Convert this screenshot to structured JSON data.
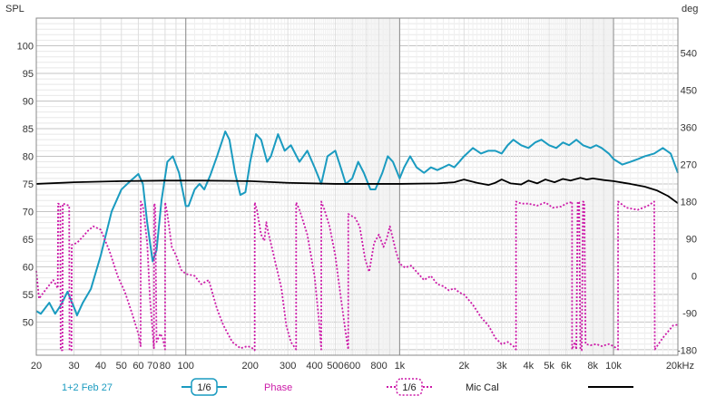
{
  "chart_data": {
    "type": "line",
    "left_axis": {
      "title": "SPL",
      "ylim": [
        44,
        105
      ],
      "ticks": [
        50,
        55,
        60,
        65,
        70,
        75,
        80,
        85,
        90,
        95,
        100
      ],
      "tick_labels": [
        "50",
        "55",
        "60",
        "65",
        "70",
        "75",
        "80",
        "85",
        "90",
        "95",
        "100"
      ]
    },
    "right_axis": {
      "title": "deg",
      "ylim": [
        -192,
        624
      ],
      "ticks": [
        -180,
        -90,
        0,
        90,
        180,
        270,
        360,
        450,
        540
      ],
      "tick_labels": [
        "-180",
        "-90",
        "0",
        "90",
        "180",
        "270",
        "360",
        "450",
        "540"
      ]
    },
    "x_axis": {
      "scale": "log",
      "xlim": [
        20,
        20000
      ],
      "unit": "Hz",
      "ticks": [
        20,
        30,
        40,
        50,
        60,
        70,
        80,
        100,
        200,
        300,
        400,
        500,
        600,
        800,
        1000,
        2000,
        3000,
        4000,
        5000,
        6000,
        8000,
        10000,
        20000
      ],
      "tick_labels": [
        "20",
        "30",
        "40",
        "50",
        "60",
        "70",
        "80",
        "100",
        "200",
        "300",
        "400",
        "500",
        "600",
        "800",
        "1k",
        "2k",
        "3k",
        "4k",
        "5k",
        "6k",
        "8k",
        "10k",
        "20kHz"
      ],
      "decade_lines": [
        100,
        1000,
        10000
      ]
    },
    "legend": [
      {
        "label": "1+2 Feb 27",
        "smoothing": "1/6",
        "color": "#1a9bc0",
        "style": "solid"
      },
      {
        "label": "Phase",
        "smoothing": "1/6",
        "color": "#cc1aa8",
        "style": "dotted"
      },
      {
        "label": "Mic Cal",
        "smoothing": "",
        "color": "#000000",
        "style": "solid"
      }
    ],
    "series": [
      {
        "name": "1+2 Feb 27",
        "axis": "left",
        "color": "#1a9bc0",
        "points": [
          [
            20,
            52
          ],
          [
            21,
            51.5
          ],
          [
            23,
            53.5
          ],
          [
            24.5,
            51.5
          ],
          [
            26,
            53
          ],
          [
            28,
            55.5
          ],
          [
            30.5,
            52
          ],
          [
            31,
            51.2
          ],
          [
            33,
            53.5
          ],
          [
            36,
            56
          ],
          [
            40,
            62
          ],
          [
            45,
            70
          ],
          [
            50,
            74
          ],
          [
            55,
            75.5
          ],
          [
            60,
            76.8
          ],
          [
            63,
            75
          ],
          [
            66,
            68
          ],
          [
            70,
            61
          ],
          [
            73,
            63
          ],
          [
            77,
            72
          ],
          [
            82,
            79
          ],
          [
            87,
            80
          ],
          [
            93,
            77
          ],
          [
            100,
            71
          ],
          [
            103,
            71
          ],
          [
            110,
            74
          ],
          [
            116,
            75
          ],
          [
            122,
            74
          ],
          [
            130,
            76.5
          ],
          [
            140,
            80
          ],
          [
            153,
            84.5
          ],
          [
            160,
            83
          ],
          [
            170,
            77
          ],
          [
            180,
            73
          ],
          [
            190,
            73.5
          ],
          [
            200,
            79
          ],
          [
            213,
            84
          ],
          [
            225,
            83
          ],
          [
            240,
            79
          ],
          [
            250,
            80
          ],
          [
            270,
            84
          ],
          [
            290,
            81
          ],
          [
            310,
            82
          ],
          [
            340,
            79
          ],
          [
            370,
            81
          ],
          [
            400,
            78
          ],
          [
            430,
            75
          ],
          [
            460,
            80
          ],
          [
            500,
            81
          ],
          [
            530,
            78
          ],
          [
            560,
            75
          ],
          [
            600,
            76
          ],
          [
            640,
            79
          ],
          [
            680,
            77
          ],
          [
            730,
            74
          ],
          [
            770,
            74
          ],
          [
            830,
            77
          ],
          [
            880,
            80
          ],
          [
            930,
            79
          ],
          [
            1000,
            76
          ],
          [
            1050,
            78
          ],
          [
            1120,
            80
          ],
          [
            1200,
            78
          ],
          [
            1300,
            77
          ],
          [
            1400,
            78
          ],
          [
            1500,
            77.5
          ],
          [
            1600,
            78
          ],
          [
            1700,
            78.5
          ],
          [
            1800,
            78
          ],
          [
            1900,
            79
          ],
          [
            2000,
            80
          ],
          [
            2200,
            81.5
          ],
          [
            2400,
            80.5
          ],
          [
            2600,
            81
          ],
          [
            2800,
            81
          ],
          [
            3000,
            80.5
          ],
          [
            3200,
            82
          ],
          [
            3400,
            83
          ],
          [
            3700,
            82
          ],
          [
            4000,
            81.5
          ],
          [
            4300,
            82.5
          ],
          [
            4600,
            83
          ],
          [
            5000,
            82
          ],
          [
            5400,
            81.5
          ],
          [
            5800,
            82.5
          ],
          [
            6200,
            82
          ],
          [
            6700,
            83
          ],
          [
            7200,
            82
          ],
          [
            7800,
            81.5
          ],
          [
            8300,
            82
          ],
          [
            8800,
            81.5
          ],
          [
            9500,
            80.5
          ],
          [
            10000,
            79.5
          ],
          [
            11000,
            78.5
          ],
          [
            12000,
            79
          ],
          [
            13000,
            79.5
          ],
          [
            14000,
            80
          ],
          [
            15500,
            80.5
          ],
          [
            17000,
            81.5
          ],
          [
            18500,
            80.5
          ],
          [
            20000,
            77
          ]
        ]
      },
      {
        "name": "Mic Cal",
        "axis": "left",
        "color": "#000000",
        "points": [
          [
            20,
            75
          ],
          [
            30,
            75.3
          ],
          [
            50,
            75.5
          ],
          [
            80,
            75.6
          ],
          [
            120,
            75.6
          ],
          [
            200,
            75.5
          ],
          [
            300,
            75.2
          ],
          [
            500,
            75
          ],
          [
            1000,
            75
          ],
          [
            1500,
            75.1
          ],
          [
            1800,
            75.3
          ],
          [
            2000,
            75.8
          ],
          [
            2300,
            75.2
          ],
          [
            2600,
            74.8
          ],
          [
            2800,
            75.2
          ],
          [
            3000,
            75.8
          ],
          [
            3300,
            75.1
          ],
          [
            3700,
            74.9
          ],
          [
            4000,
            75.6
          ],
          [
            4400,
            75.1
          ],
          [
            4800,
            75.8
          ],
          [
            5300,
            75.3
          ],
          [
            5800,
            75.9
          ],
          [
            6300,
            75.6
          ],
          [
            7000,
            76.1
          ],
          [
            7500,
            75.8
          ],
          [
            8000,
            76
          ],
          [
            9000,
            75.7
          ],
          [
            10000,
            75.5
          ],
          [
            12000,
            75
          ],
          [
            14000,
            74.5
          ],
          [
            16000,
            73.8
          ],
          [
            18000,
            72.8
          ],
          [
            20000,
            71.5
          ]
        ]
      },
      {
        "name": "Phase",
        "axis": "right",
        "color": "#cc1aa8",
        "points": [
          [
            20,
            12
          ],
          [
            20.6,
            -55
          ],
          [
            22,
            -35
          ],
          [
            24,
            -10
          ],
          [
            25.2,
            -30
          ],
          [
            25.3,
            175
          ],
          [
            25.9,
            172
          ],
          [
            26,
            -180
          ],
          [
            26.5,
            -180
          ],
          [
            26.6,
            175
          ],
          [
            28.5,
            170
          ],
          [
            28.6,
            -180
          ],
          [
            29.2,
            -180
          ],
          [
            29.3,
            75
          ],
          [
            31,
            80
          ],
          [
            33,
            95
          ],
          [
            35,
            110
          ],
          [
            37,
            120
          ],
          [
            40,
            112
          ],
          [
            44,
            60
          ],
          [
            48,
            0
          ],
          [
            52,
            -40
          ],
          [
            56,
            -90
          ],
          [
            60,
            -140
          ],
          [
            61.5,
            -170
          ],
          [
            61.6,
            180
          ],
          [
            63,
            170
          ],
          [
            66,
            80
          ],
          [
            68,
            -55
          ],
          [
            70,
            -135
          ],
          [
            71,
            -175
          ],
          [
            71.1,
            175
          ],
          [
            72,
            170
          ],
          [
            73,
            -160
          ],
          [
            76,
            -140
          ],
          [
            78,
            -150
          ],
          [
            80,
            -178
          ],
          [
            80.1,
            178
          ],
          [
            82,
            150
          ],
          [
            86,
            70
          ],
          [
            90,
            50
          ],
          [
            95,
            15
          ],
          [
            100,
            5
          ],
          [
            110,
            0
          ],
          [
            118,
            -20
          ],
          [
            128,
            -10
          ],
          [
            140,
            -80
          ],
          [
            150,
            -120
          ],
          [
            165,
            -160
          ],
          [
            180,
            -175
          ],
          [
            195,
            -170
          ],
          [
            205,
            -175
          ],
          [
            210,
            -180
          ],
          [
            210.1,
            178
          ],
          [
            215,
            160
          ],
          [
            225,
            100
          ],
          [
            233,
            85
          ],
          [
            238,
            130
          ],
          [
            243,
            105
          ],
          [
            255,
            60
          ],
          [
            280,
            -30
          ],
          [
            295,
            -120
          ],
          [
            310,
            -160
          ],
          [
            328,
            -178
          ],
          [
            328.1,
            178
          ],
          [
            340,
            160
          ],
          [
            355,
            130
          ],
          [
            370,
            100
          ],
          [
            400,
            0
          ],
          [
            418,
            -100
          ],
          [
            430,
            -178
          ],
          [
            430.1,
            180
          ],
          [
            445,
            160
          ],
          [
            470,
            120
          ],
          [
            500,
            50
          ],
          [
            530,
            -50
          ],
          [
            560,
            -140
          ],
          [
            575,
            -178
          ],
          [
            575.1,
            150
          ],
          [
            620,
            140
          ],
          [
            650,
            120
          ],
          [
            690,
            40
          ],
          [
            720,
            10
          ],
          [
            760,
            80
          ],
          [
            800,
            100
          ],
          [
            840,
            70
          ],
          [
            870,
            90
          ],
          [
            900,
            120
          ],
          [
            930,
            90
          ],
          [
            960,
            60
          ],
          [
            1000,
            30
          ],
          [
            1060,
            20
          ],
          [
            1130,
            25
          ],
          [
            1200,
            10
          ],
          [
            1300,
            -10
          ],
          [
            1400,
            0
          ],
          [
            1500,
            -20
          ],
          [
            1600,
            -25
          ],
          [
            1700,
            -35
          ],
          [
            1800,
            -30
          ],
          [
            1900,
            -40
          ],
          [
            2000,
            -45
          ],
          [
            2200,
            -70
          ],
          [
            2400,
            -100
          ],
          [
            2600,
            -120
          ],
          [
            2800,
            -150
          ],
          [
            3000,
            -165
          ],
          [
            3200,
            -160
          ],
          [
            3400,
            -170
          ],
          [
            3500,
            -178
          ],
          [
            3500.1,
            180
          ],
          [
            3700,
            175
          ],
          [
            4000,
            175
          ],
          [
            4400,
            170
          ],
          [
            4800,
            178
          ],
          [
            5200,
            165
          ],
          [
            5700,
            168
          ],
          [
            6000,
            175
          ],
          [
            6300,
            178
          ],
          [
            6400,
            180
          ],
          [
            6400.1,
            -178
          ],
          [
            6600,
            -160
          ],
          [
            6700,
            -178
          ],
          [
            6800,
            180
          ],
          [
            6900,
            178
          ],
          [
            7000,
            -178
          ],
          [
            7100,
            -180
          ],
          [
            7200,
            180
          ],
          [
            7300,
            178
          ],
          [
            7400,
            -165
          ],
          [
            7800,
            -168
          ],
          [
            8300,
            -165
          ],
          [
            8800,
            -170
          ],
          [
            9500,
            -165
          ],
          [
            10000,
            -170
          ],
          [
            10500,
            -178
          ],
          [
            10500.1,
            180
          ],
          [
            11500,
            165
          ],
          [
            13000,
            160
          ],
          [
            14500,
            170
          ],
          [
            15500,
            180
          ],
          [
            15600,
            -178
          ],
          [
            17000,
            -150
          ],
          [
            19000,
            -120
          ],
          [
            20000,
            -118
          ]
        ]
      }
    ]
  }
}
